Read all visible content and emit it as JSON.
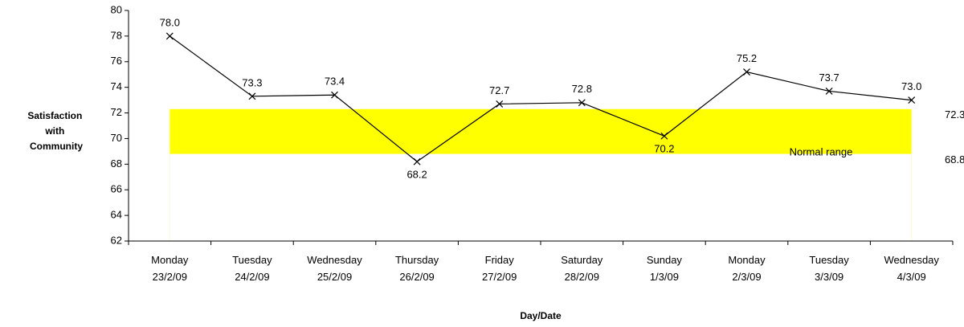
{
  "chart_data": {
    "type": "line",
    "ylabel": [
      "Satisfaction",
      "with",
      "Community"
    ],
    "xlabel": "Day/Date",
    "categories": [
      [
        "Monday",
        "23/2/09"
      ],
      [
        "Tuesday",
        "24/2/09"
      ],
      [
        "Wednesday",
        "25/2/09"
      ],
      [
        "Thursday",
        "26/2/09"
      ],
      [
        "Friday",
        "27/2/09"
      ],
      [
        "Saturday",
        "28/2/09"
      ],
      [
        "Sunday",
        "1/3/09"
      ],
      [
        "Monday",
        "2/3/09"
      ],
      [
        "Tuesday",
        "3/3/09"
      ],
      [
        "Wednesday",
        "4/3/09"
      ]
    ],
    "values": [
      78.0,
      73.3,
      73.4,
      68.2,
      72.7,
      72.8,
      70.2,
      75.2,
      73.7,
      73.0
    ],
    "value_labels": [
      "78.0",
      "73.3",
      "73.4",
      "68.2",
      "72.7",
      "72.8",
      "70.2",
      "75.2",
      "73.7",
      "73.0"
    ],
    "color": "#000000",
    "ylim": [
      62,
      80
    ],
    "yticks": [
      62,
      64,
      66,
      68,
      70,
      72,
      74,
      76,
      78,
      80
    ],
    "grid": false,
    "normal_range": {
      "label": "Normal range",
      "low": 68.8,
      "high": 72.3,
      "color": "#ffff00"
    }
  }
}
